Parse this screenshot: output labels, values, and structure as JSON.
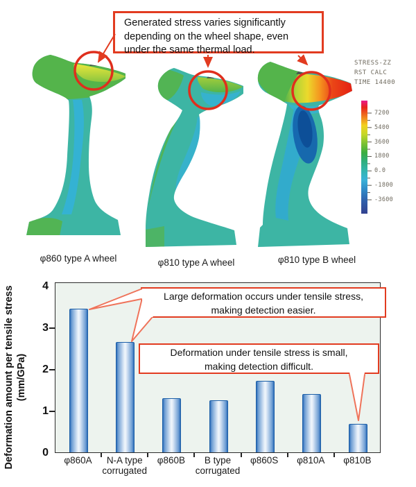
{
  "figure": {
    "top_callout": {
      "text": "Generated stress varies significantly\ndepending on the wheel shape, even\nunder the same thermal load."
    },
    "wheels": [
      {
        "label": "φ860 type A wheel"
      },
      {
        "label": "φ810 type A wheel"
      },
      {
        "label": "φ810 type B wheel"
      }
    ],
    "legend": {
      "title_lines": [
        "STRESS-ZZ",
        "RST CALC",
        "TIME 14400"
      ],
      "tick_labels": [
        "7200",
        "5400",
        "3600",
        "1800",
        "0.0",
        "-1800",
        "-3600"
      ]
    },
    "colors": {
      "accent_red": "#e23b20",
      "tail_red": "#ef735a",
      "bar_blue": "#2e6db9",
      "plot_background": "#edf3ee",
      "contour_teal": "#3db5a4",
      "contour_green": "#54b44b",
      "contour_cyan": "#33b1dc",
      "contour_yellow": "#e3e135",
      "contour_hot_red": "#e51f13",
      "contour_dark_blue": "#1565ae"
    }
  },
  "chart_data": {
    "type": "bar",
    "categories": [
      "φ860A",
      "N-A type\ncorrugated",
      "φ860B",
      "B type\ncorrugated",
      "φ860S",
      "φ810A",
      "φ810B"
    ],
    "values": [
      3.45,
      2.65,
      1.3,
      1.25,
      1.72,
      1.4,
      0.68
    ],
    "title": "",
    "xlabel": "",
    "ylabel": "Deformation amount per tensile stress",
    "ylabel_unit": "(mm/GPa)",
    "yticks": [
      0,
      1,
      2,
      3,
      4
    ],
    "ylim": [
      0,
      4.1
    ],
    "grid": false,
    "legend_position": "none",
    "callouts": [
      {
        "text": "Large deformation occurs under tensile stress,\nmaking detection easier."
      },
      {
        "text": "Deformation under tensile stress is small,\nmaking detection difficult."
      }
    ]
  }
}
